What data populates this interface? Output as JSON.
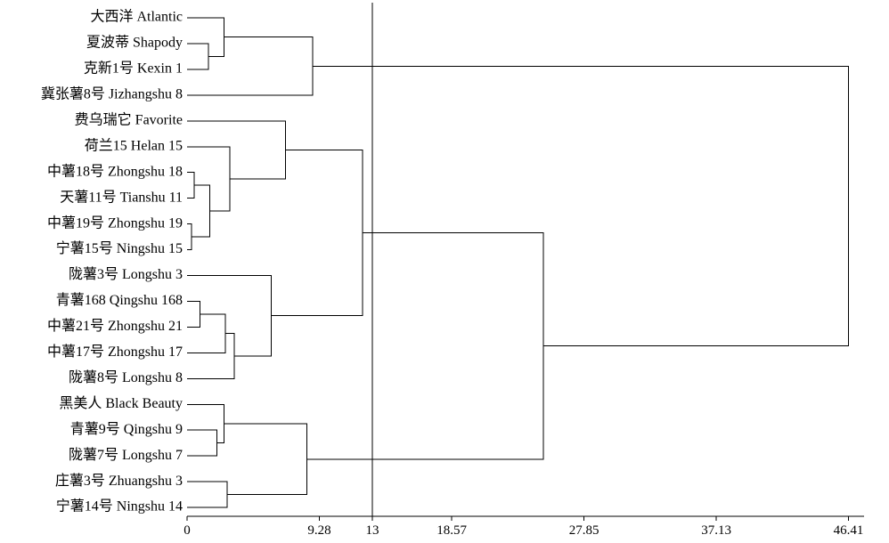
{
  "chart_data": {
    "type": "dendrogram",
    "leaves": [
      "大西洋 Atlantic",
      "夏波蒂 Shapody",
      "克新1号 Kexin 1",
      "冀张薯8号 Jizhangshu 8",
      "费乌瑞它 Favorite",
      "荷兰15 Helan 15",
      "中薯18号 Zhongshu 18",
      "天薯11号 Tianshu 11",
      "中薯19号 Zhongshu 19",
      "宁薯15号 Ningshu 15",
      "陇薯3号 Longshu 3",
      "青薯168 Qingshu 168",
      "中薯21号 Zhongshu 21",
      "中薯17号 Zhongshu 17",
      "陇薯8号 Longshu 8",
      "黑美人 Black Beauty",
      "青薯9号 Qingshu 9",
      "陇薯7号 Longshu 7",
      "庄薯3号 Zhuangshu 3",
      "宁薯14号 Ningshu 14"
    ],
    "x_ticks": [
      {
        "value": 0,
        "label": "0"
      },
      {
        "value": 9.28,
        "label": "9.28"
      },
      {
        "value": 13,
        "label": "13"
      },
      {
        "value": 18.57,
        "label": "18.57"
      },
      {
        "value": 27.85,
        "label": "27.85"
      },
      {
        "value": 37.13,
        "label": "37.13"
      },
      {
        "value": 46.41,
        "label": "46.41"
      }
    ],
    "xlim": [
      0,
      47.5
    ],
    "cut_line": 13,
    "merges": [
      {
        "id": 20,
        "a": 6,
        "b": 7,
        "distance": 0.5
      },
      {
        "id": 21,
        "a": 8,
        "b": 9,
        "distance": 0.3
      },
      {
        "id": 22,
        "a": 11,
        "b": 12,
        "distance": 0.9
      },
      {
        "id": 23,
        "a": 16,
        "b": 17,
        "distance": 2.1
      },
      {
        "id": 24,
        "a": 1,
        "b": 2,
        "distance": 1.5
      },
      {
        "id": 25,
        "a": 0,
        "b": 24,
        "distance": 2.6
      },
      {
        "id": 26,
        "a": 20,
        "b": 21,
        "distance": 1.6
      },
      {
        "id": 27,
        "a": 22,
        "b": 13,
        "distance": 2.7
      },
      {
        "id": 28,
        "a": 15,
        "b": 23,
        "distance": 2.6
      },
      {
        "id": 29,
        "a": 18,
        "b": 19,
        "distance": 2.8
      },
      {
        "id": 30,
        "a": 5,
        "b": 26,
        "distance": 3.0
      },
      {
        "id": 31,
        "a": 27,
        "b": 14,
        "distance": 3.3
      },
      {
        "id": 32,
        "a": 10,
        "b": 31,
        "distance": 5.9
      },
      {
        "id": 33,
        "a": 4,
        "b": 30,
        "distance": 6.9
      },
      {
        "id": 34,
        "a": 25,
        "b": 3,
        "distance": 8.8
      },
      {
        "id": 35,
        "a": 28,
        "b": 29,
        "distance": 8.4
      },
      {
        "id": 36,
        "a": 33,
        "b": 32,
        "distance": 12.3
      },
      {
        "id": 37,
        "a": 36,
        "b": 35,
        "distance": 25.0
      },
      {
        "id": 38,
        "a": 34,
        "b": 37,
        "distance": 46.41
      }
    ]
  }
}
